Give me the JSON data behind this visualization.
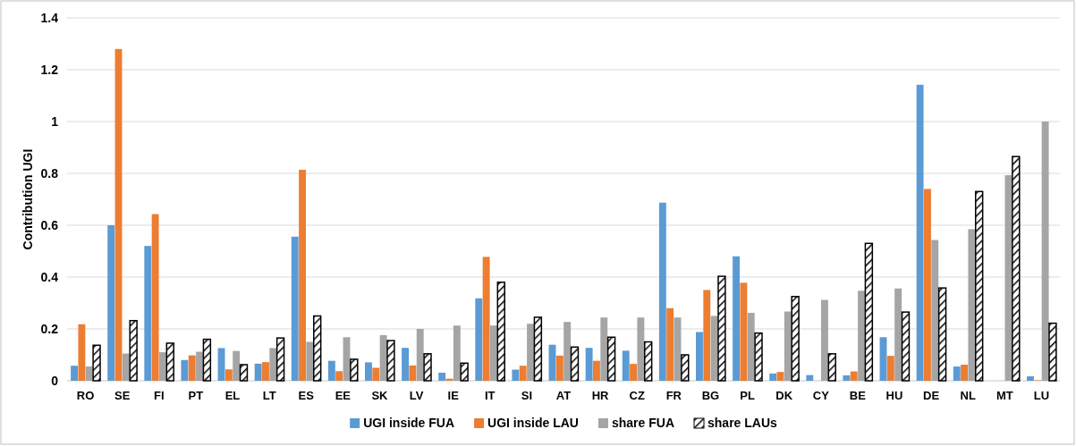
{
  "chart_data": {
    "type": "bar",
    "ylabel": "Contribution UGI",
    "categories": [
      "RO",
      "SE",
      "FI",
      "PT",
      "EL",
      "LT",
      "ES",
      "EE",
      "SK",
      "LV",
      "IE",
      "IT",
      "SI",
      "AT",
      "HR",
      "CZ",
      "FR",
      "BG",
      "PL",
      "DK",
      "CY",
      "BE",
      "HU",
      "DE",
      "NL",
      "MT",
      "LU"
    ],
    "series": [
      {
        "name": "UGI inside FUA",
        "color": "#5b9bd5",
        "values": [
          0.058,
          0.6,
          0.52,
          0.08,
          0.126,
          0.066,
          0.556,
          0.077,
          0.071,
          0.127,
          0.031,
          0.318,
          0.043,
          0.139,
          0.127,
          0.116,
          0.687,
          0.188,
          0.48,
          0.028,
          0.022,
          0.021,
          0.168,
          1.142,
          0.055,
          0,
          0.017
        ]
      },
      {
        "name": "UGI inside LAU",
        "color": "#ed7d31",
        "values": [
          0.218,
          1.28,
          0.643,
          0.098,
          0.044,
          0.072,
          0.814,
          0.037,
          0.05,
          0.059,
          0.008,
          0.478,
          0.058,
          0.097,
          0.077,
          0.065,
          0.28,
          0.35,
          0.378,
          0.034,
          0,
          0.036,
          0.096,
          0.74,
          0.062,
          0,
          0.002
        ]
      },
      {
        "name": "share FUA",
        "color": "#a5a5a5",
        "values": [
          0.055,
          0.105,
          0.11,
          0.112,
          0.115,
          0.126,
          0.15,
          0.168,
          0.176,
          0.2,
          0.213,
          0.213,
          0.22,
          0.227,
          0.244,
          0.244,
          0.244,
          0.25,
          0.262,
          0.267,
          0.312,
          0.347,
          0.356,
          0.543,
          0.585,
          0.793,
          1.0
        ]
      },
      {
        "name": "share LAUs",
        "color": "#000000",
        "values": [
          0.137,
          0.232,
          0.145,
          0.16,
          0.062,
          0.165,
          0.25,
          0.083,
          0.155,
          0.104,
          0.068,
          0.38,
          0.245,
          0.13,
          0.168,
          0.15,
          0.1,
          0.403,
          0.184,
          0.325,
          0.104,
          0.53,
          0.265,
          0.358,
          0.73,
          0.865,
          0.222
        ]
      }
    ],
    "ylim": [
      0,
      1.4
    ],
    "yticks": [
      0,
      0.2,
      0.4,
      0.6,
      0.8,
      1,
      1.2,
      1.4
    ],
    "grid": "y",
    "legend": "bottom"
  }
}
